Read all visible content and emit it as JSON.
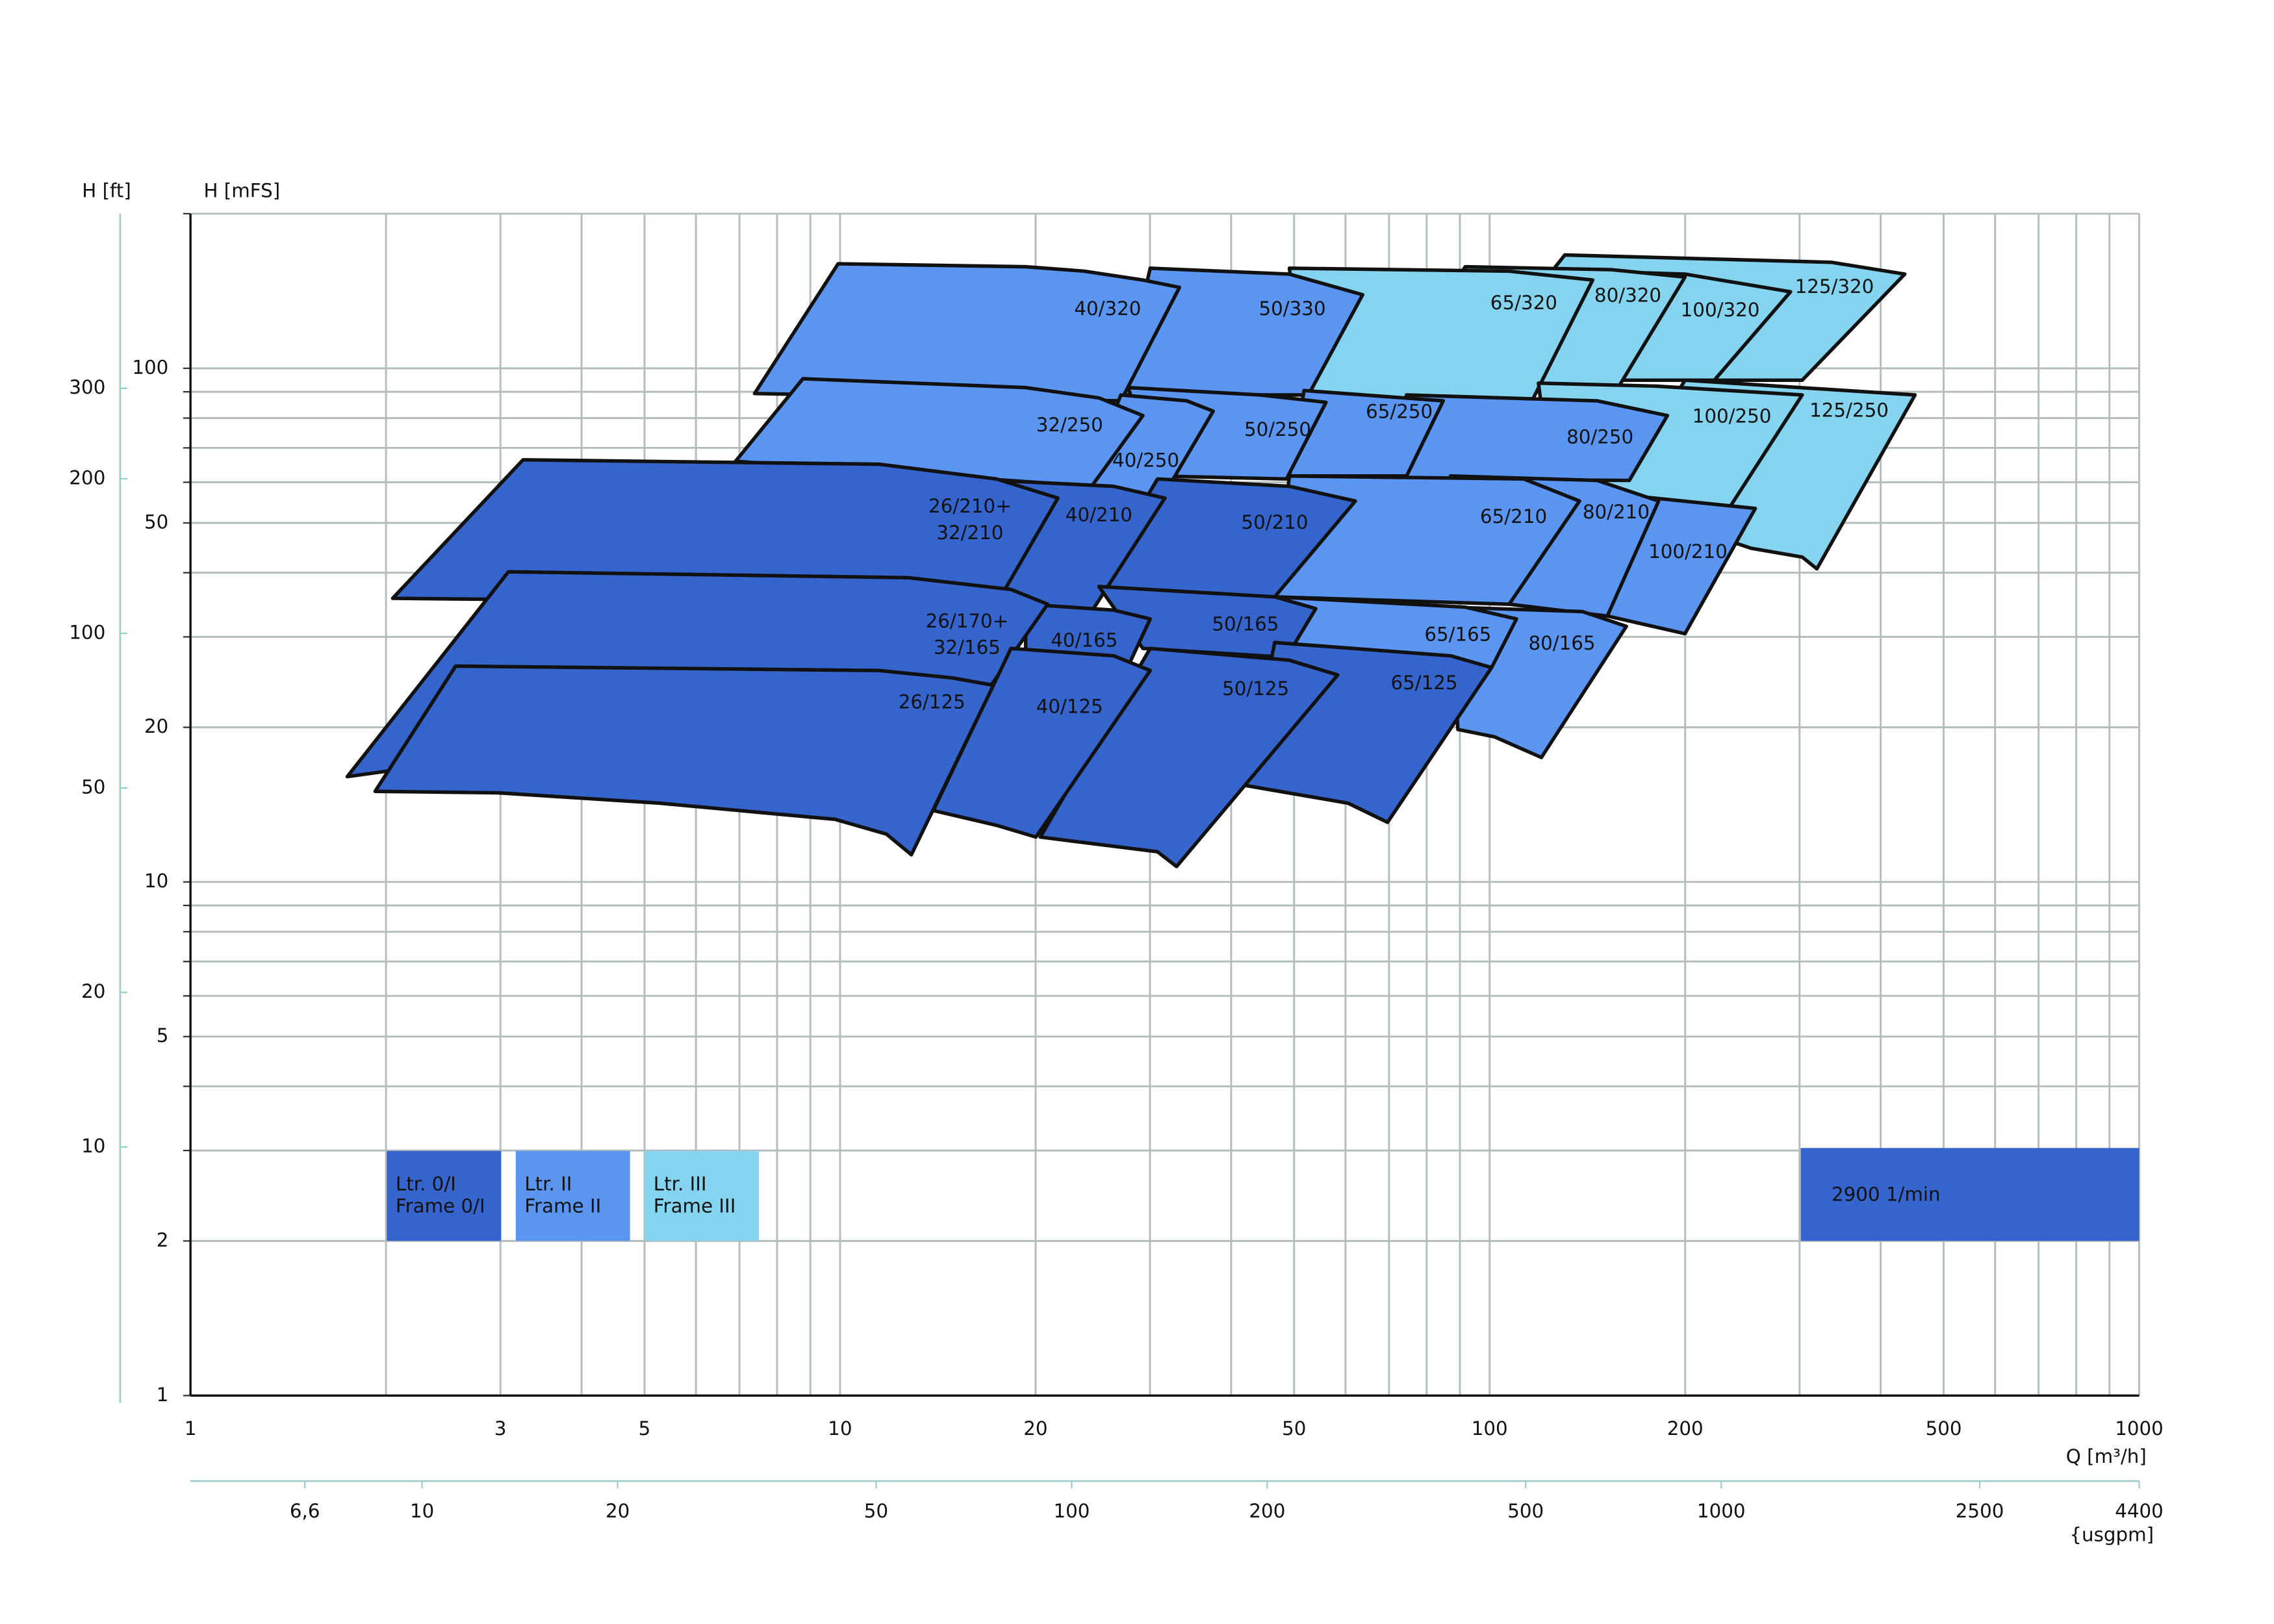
{
  "chart_data": {
    "type": "region-map",
    "xlabel": "Q [m³/h]",
    "ylabel": "H [mFS]",
    "y2label": "H [ft]",
    "x2label": "{usgpm]",
    "xlog": true,
    "ylog": true,
    "grid": true,
    "xlim": [
      1,
      1000
    ],
    "xticks": [
      1,
      3,
      5,
      10,
      20,
      50,
      100,
      200,
      500,
      1000
    ],
    "xgrid": [
      1,
      2,
      3,
      4,
      5,
      6,
      7,
      8,
      9,
      10,
      20,
      30,
      40,
      50,
      60,
      70,
      80,
      90,
      100,
      200,
      300,
      400,
      500,
      600,
      700,
      800,
      900,
      1000
    ],
    "ylim": [
      1,
      200
    ],
    "yticks": [
      1,
      2,
      5,
      10,
      20,
      50,
      100
    ],
    "ygrid": [
      1,
      2,
      3,
      4,
      5,
      6,
      7,
      8,
      9,
      10,
      20,
      30,
      40,
      50,
      60,
      70,
      80,
      90,
      100,
      200
    ],
    "y2lim": [
      3.281,
      656.2
    ],
    "y2ticks": [
      10,
      20,
      50,
      100,
      200,
      300
    ],
    "x2lim": [
      4.4,
      4400
    ],
    "x2ticks": [
      {
        "value": 6.6,
        "label": "6,6"
      },
      10,
      20,
      50,
      100,
      200,
      500,
      1000,
      2500,
      4400
    ],
    "frames": [
      {
        "label": [
          "Ltr. 0/I",
          "Frame 0/I"
        ],
        "color": "#3464cc"
      },
      {
        "label": [
          "Ltr. II",
          "Frame II"
        ],
        "color": "#5b95f2"
      },
      {
        "label": [
          "Ltr. III",
          "Frame III"
        ],
        "color": "#84d4f0"
      }
    ],
    "speed": "2900 1/min",
    "speed_color": "#3464cc",
    "regions": [
      {
        "label": [
          "125/320"
        ],
        "frame": 2
      },
      {
        "label": [
          "100/320"
        ],
        "frame": 2
      },
      {
        "label": [
          "80/320"
        ],
        "frame": 2
      },
      {
        "label": [
          "65/320"
        ],
        "frame": 2
      },
      {
        "label": [
          "50/330"
        ],
        "frame": 1
      },
      {
        "label": [
          "40/320"
        ],
        "frame": 1
      },
      {
        "label": [
          "125/250"
        ],
        "frame": 2
      },
      {
        "label": [
          "100/250"
        ],
        "frame": 2
      },
      {
        "label": [
          "80/250"
        ],
        "frame": 1
      },
      {
        "label": [
          "65/250"
        ],
        "frame": 1
      },
      {
        "label": [
          "50/250"
        ],
        "frame": 1
      },
      {
        "label": [
          "40/250"
        ],
        "frame": 1
      },
      {
        "label": [
          "32/250"
        ],
        "frame": 1
      },
      {
        "label": [
          "100/210"
        ],
        "frame": 1
      },
      {
        "label": [
          "80/210"
        ],
        "frame": 1
      },
      {
        "label": [
          "65/210"
        ],
        "frame": 1
      },
      {
        "label": [
          "50/210"
        ],
        "frame": 0
      },
      {
        "label": [
          "40/210"
        ],
        "frame": 0
      },
      {
        "label": [
          "26/210+",
          "32/210"
        ],
        "frame": 0
      },
      {
        "label": [
          "80/165"
        ],
        "frame": 1
      },
      {
        "label": [
          "65/165"
        ],
        "frame": 1
      },
      {
        "label": [
          "50/165"
        ],
        "frame": 0
      },
      {
        "label": [
          "40/165"
        ],
        "frame": 0
      },
      {
        "label": [
          "26/170+",
          "32/165"
        ],
        "frame": 0
      },
      {
        "label": [
          "65/125"
        ],
        "frame": 0
      },
      {
        "label": [
          "50/125"
        ],
        "frame": 0
      },
      {
        "label": [
          "40/125"
        ],
        "frame": 0
      },
      {
        "label": [
          "26/125"
        ],
        "frame": 0
      }
    ]
  }
}
